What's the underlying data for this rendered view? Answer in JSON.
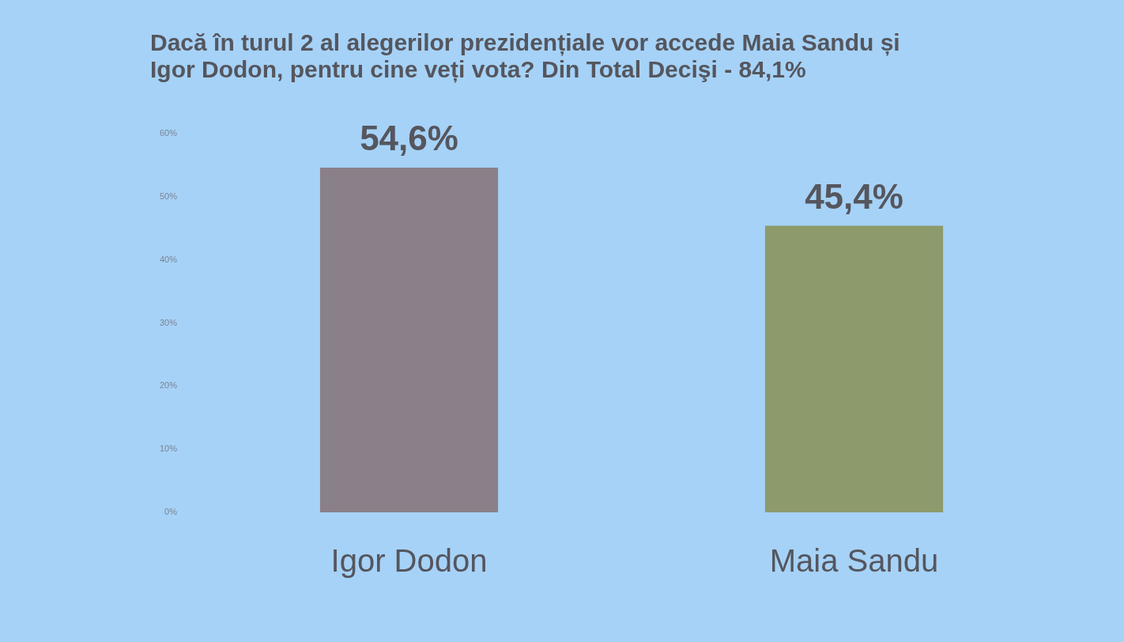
{
  "chart_data": {
    "type": "bar",
    "title": "Dacă în turul 2 al alegerilor prezidențiale vor accede Maia Sandu și\nIgor Dodon, pentru cine veți vota? Din Total Decişi - 84,1%",
    "categories": [
      "Igor Dodon",
      "Maia Sandu"
    ],
    "values": [
      54.6,
      45.4
    ],
    "colors": [
      "#8a8089",
      "#8c9a6c"
    ],
    "value_labels": [
      "54,6%",
      "45,4%"
    ],
    "ylim": [
      0,
      60
    ],
    "yticks": [
      {
        "value": 0,
        "label": "0%"
      },
      {
        "value": 10,
        "label": "10%"
      },
      {
        "value": 20,
        "label": "20%"
      },
      {
        "value": 30,
        "label": "30%"
      },
      {
        "value": 40,
        "label": "40%"
      },
      {
        "value": 50,
        "label": "50%"
      },
      {
        "value": 60,
        "label": "60%"
      }
    ],
    "grid": false,
    "legend": false
  }
}
